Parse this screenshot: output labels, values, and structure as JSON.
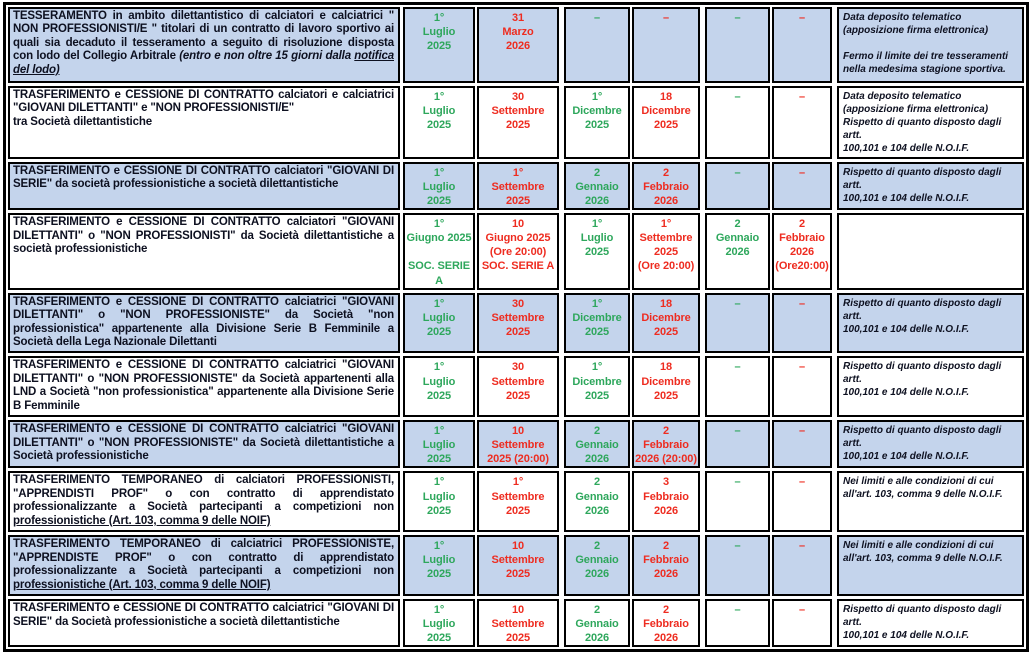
{
  "colors": {
    "row_blue": "#c4d4ec",
    "row_white": "#ffffff",
    "green": "#2ea75c",
    "red": "#ee2c20",
    "text": "#0d1020"
  },
  "rows": [
    {
      "bg": "blue",
      "description": [
        {
          "text": "TESSERAMENTO in ambito dilettantistico di calciatori e calciatrici \" NON PROFESSIONISTI/E \" titolari di un contratto di lavoro sportivo ai quali sia decaduto il tesseramento a seguito di risoluzione disposta con lodo del Collegio Arbitrale ",
          "style": ""
        },
        {
          "text": "(entro e non oltre 15 giorni dalla ",
          "style": "italic"
        },
        {
          "text": "notifica del lodo)",
          "style": "italic underline"
        }
      ],
      "dates": [
        {
          "text": "1°\nLuglio\n2025",
          "color": "green"
        },
        {
          "text": "31\nMarzo\n2026",
          "color": "red"
        },
        {
          "text": "–",
          "color": "green"
        },
        {
          "text": "–",
          "color": "red"
        },
        {
          "text": "–",
          "color": "green"
        },
        {
          "text": "–",
          "color": "red"
        }
      ],
      "notes": "Data deposito telematico\n(apposizione firma elettronica)\n\nFermo il limite dei tre tesseramenti\nnella medesima stagione sportiva."
    },
    {
      "bg": "white",
      "description": [
        {
          "text": "TRASFERIMENTO e CESSIONE DI CONTRATTO calciatori e calciatrici \"GIOVANI DILETTANTI\" e \"NON PROFESSIONISTI/E\"\ntra Società dilettantistiche",
          "style": ""
        }
      ],
      "dates": [
        {
          "text": "1°\nLuglio\n2025",
          "color": "green"
        },
        {
          "text": "30\nSettembre\n2025",
          "color": "red"
        },
        {
          "text": "1°\nDicembre\n2025",
          "color": "green"
        },
        {
          "text": "18\nDicembre\n2025",
          "color": "red"
        },
        {
          "text": "–",
          "color": "green"
        },
        {
          "text": "–",
          "color": "red"
        }
      ],
      "notes": "Data deposito telematico\n(apposizione firma elettronica)\nRispetto di quanto disposto dagli artt.\n100,101 e 104 delle N.O.I.F."
    },
    {
      "bg": "blue",
      "description": [
        {
          "text": "TRASFERIMENTO e CESSIONE DI CONTRATTO calciatori \"GIOVANI DI SERIE\" da società professionistiche a società dilettantistiche",
          "style": ""
        }
      ],
      "dates": [
        {
          "text": "1°\nLuglio\n2025",
          "color": "green"
        },
        {
          "text": "1°\nSettembre\n2025",
          "color": "red"
        },
        {
          "text": "2\nGennaio\n2026",
          "color": "green"
        },
        {
          "text": "2\nFebbraio\n2026",
          "color": "red"
        },
        {
          "text": "–",
          "color": "green"
        },
        {
          "text": "–",
          "color": "red"
        }
      ],
      "notes": "Rispetto di quanto disposto dagli artt.\n100,101 e 104 delle N.O.I.F."
    },
    {
      "bg": "white",
      "description": [
        {
          "text": "TRASFERIMENTO e CESSIONE DI CONTRATTO calciatori \"GIOVANI DILETTANTI\" o \"NON PROFESSIONISTI\" da Società dilettantistiche a società professionistiche",
          "style": ""
        }
      ],
      "dates": [
        {
          "text": "1°\nGiugno 2025\n\nSOC. SERIE A",
          "color": "green"
        },
        {
          "text": "10\nGiugno 2025\n(Ore 20:00)\nSOC. SERIE A",
          "color": "red"
        },
        {
          "text": "1°\nLuglio\n2025",
          "color": "green"
        },
        {
          "text": "1°\nSettembre\n2025\n(Ore 20:00)",
          "color": "red"
        },
        {
          "text": "2\nGennaio\n2026",
          "color": "green"
        },
        {
          "text": "2\nFebbraio\n2026\n(Ore20:00)",
          "color": "red"
        }
      ],
      "notes": ""
    },
    {
      "bg": "blue",
      "description": [
        {
          "text": "TRASFERIMENTO e CESSIONE DI CONTRATTO calciatrici \"GIOVANI DILETTANTI\" o \"NON PROFESSIONISTE\" da Società \"non professionistica\" appartenente alla Divisione Serie B Femminile a Società della Lega Nazionale Dilettanti",
          "style": ""
        }
      ],
      "dates": [
        {
          "text": "1°\nLuglio\n2025",
          "color": "green"
        },
        {
          "text": "30\nSettembre\n2025",
          "color": "red"
        },
        {
          "text": "1°\nDicembre\n2025",
          "color": "green"
        },
        {
          "text": "18\nDicembre\n2025",
          "color": "red"
        },
        {
          "text": "–",
          "color": "green"
        },
        {
          "text": "–",
          "color": "red"
        }
      ],
      "notes": "Rispetto di quanto disposto dagli artt.\n100,101 e 104 delle N.O.I.F."
    },
    {
      "bg": "white",
      "description": [
        {
          "text": "TRASFERIMENTO e CESSIONE DI CONTRATTO calciatrici \"GIOVANI DILETTANTI\" o \"NON PROFESSIONISTE\" da Società appartenenti alla LND a Società \"non professionistica\" appartenente alla Divisione Serie B Femminile",
          "style": ""
        }
      ],
      "dates": [
        {
          "text": "1°\nLuglio\n2025",
          "color": "green"
        },
        {
          "text": "30\nSettembre\n2025",
          "color": "red"
        },
        {
          "text": "1°\nDicembre\n2025",
          "color": "green"
        },
        {
          "text": "18\nDicembre\n2025",
          "color": "red"
        },
        {
          "text": "–",
          "color": "green"
        },
        {
          "text": "–",
          "color": "red"
        }
      ],
      "notes": "Rispetto di quanto disposto dagli artt.\n100,101 e 104 delle N.O.I.F."
    },
    {
      "bg": "blue",
      "description": [
        {
          "text": "TRASFERIMENTO e CESSIONE DI CONTRATTO calciatrici \"GIOVANI DILETTANTI\" o \"NON PROFESSIONISTE\" da Società dilettantistiche a Società professionistiche",
          "style": ""
        }
      ],
      "dates": [
        {
          "text": "1°\nLuglio\n2025",
          "color": "green"
        },
        {
          "text": "10\nSettembre\n2025 (20:00)",
          "color": "red"
        },
        {
          "text": "2\nGennaio\n2026",
          "color": "green"
        },
        {
          "text": "2\nFebbraio\n2026 (20:00)",
          "color": "red"
        },
        {
          "text": "–",
          "color": "green"
        },
        {
          "text": "–",
          "color": "red"
        }
      ],
      "notes": "Rispetto di quanto disposto dagli artt.\n100,101 e 104 delle N.O.I.F."
    },
    {
      "bg": "white",
      "description": [
        {
          "text": "TRASFERIMENTO TEMPORANEO di calciatori PROFESSIONISTI, \"APPRENDISTI PROF\" o con contratto di apprendistato professionalizzante a Società partecipanti a competizioni non ",
          "style": ""
        },
        {
          "text": "professionistiche (Art. 103, comma 9 delle NOIF)",
          "style": "underline"
        }
      ],
      "dates": [
        {
          "text": "1°\nLuglio\n2025",
          "color": "green"
        },
        {
          "text": "1°\nSettembre\n2025",
          "color": "red"
        },
        {
          "text": "2\nGennaio\n2026",
          "color": "green"
        },
        {
          "text": "3\nFebbraio\n2026",
          "color": "red"
        },
        {
          "text": "–",
          "color": "green"
        },
        {
          "text": "–",
          "color": "red"
        }
      ],
      "notes": "Nei limiti e alle condizioni di cui\nall'art. 103, comma 9 delle N.O.I.F."
    },
    {
      "bg": "blue",
      "description": [
        {
          "text": "TRASFERIMENTO TEMPORANEO di calciatrici PROFESSIONISTE, \"APPRENDISTE PROF\" o con contratto di apprendistato professionalizzante a Società partecipanti a competizioni non ",
          "style": ""
        },
        {
          "text": "professionistiche (Art. 103, comma 9 delle NOIF)",
          "style": "underline"
        }
      ],
      "dates": [
        {
          "text": "1°\nLuglio\n2025",
          "color": "green"
        },
        {
          "text": "10\nSettembre\n2025",
          "color": "red"
        },
        {
          "text": "2\nGennaio\n2026",
          "color": "green"
        },
        {
          "text": "2\nFebbraio\n2026",
          "color": "red"
        },
        {
          "text": "–",
          "color": "green"
        },
        {
          "text": "–",
          "color": "red"
        }
      ],
      "notes": "Nei limiti e alle condizioni di cui\nall'art. 103, comma 9 delle N.O.I.F."
    },
    {
      "bg": "white",
      "description": [
        {
          "text": "TRASFERIMENTO e CESSIONE DI CONTRATTO calciatrici \"GIOVANI DI SERIE\" da Società professionistiche a società dilettantistiche",
          "style": ""
        }
      ],
      "dates": [
        {
          "text": "1°\nLuglio\n2025",
          "color": "green"
        },
        {
          "text": "10\nSettembre\n2025",
          "color": "red"
        },
        {
          "text": "2\nGennaio\n2026",
          "color": "green"
        },
        {
          "text": "2\nFebbraio\n2026",
          "color": "red"
        },
        {
          "text": "–",
          "color": "green"
        },
        {
          "text": "–",
          "color": "red"
        }
      ],
      "notes": "Rispetto di quanto disposto dagli artt.\n100,101 e 104 delle N.O.I.F."
    }
  ]
}
